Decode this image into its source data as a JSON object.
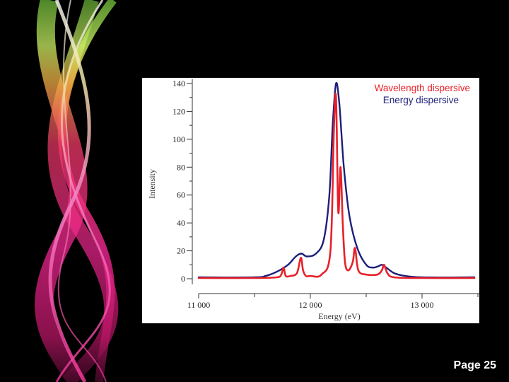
{
  "slide": {
    "page_label": "Page 25",
    "colors": {
      "background": "#000000",
      "ribbon_pink": "#ff2a8a",
      "ribbon_green": "#a6ff3c",
      "ribbon_yellow": "#ffe066"
    }
  },
  "chart_data": {
    "type": "line",
    "title": "",
    "xlabel": "Energy (eV)",
    "ylabel": "Intensity",
    "xlim": [
      11000,
      13500
    ],
    "ylim": [
      0,
      140
    ],
    "grid": false,
    "legend_position": "top-right",
    "x_ticks": [
      {
        "value": 11000,
        "label": "11 000"
      },
      {
        "value": 12000,
        "label": "12 000"
      },
      {
        "value": 13000,
        "label": "13 000"
      }
    ],
    "y_ticks": [
      {
        "value": 0,
        "label": "0"
      },
      {
        "value": 20,
        "label": "20"
      },
      {
        "value": 40,
        "label": "40"
      },
      {
        "value": 60,
        "label": "60"
      },
      {
        "value": 80,
        "label": "80"
      },
      {
        "value": 100,
        "label": "100"
      },
      {
        "value": 120,
        "label": "120"
      },
      {
        "value": 140,
        "label": "140"
      }
    ],
    "series": [
      {
        "name": "Wavelength dispersive",
        "color": "#e8202a",
        "x": [
          11000,
          11500,
          11700,
          11740,
          11760,
          11780,
          11820,
          11880,
          11915,
          11935,
          11960,
          12000,
          12100,
          12180,
          12210,
          12230,
          12250,
          12270,
          12290,
          12310,
          12340,
          12380,
          12400,
          12430,
          12500,
          12600,
          12640,
          12660,
          12690,
          12750,
          13000,
          13500
        ],
        "y": [
          0.5,
          0.5,
          1,
          3,
          8,
          2,
          2,
          4,
          15,
          6,
          2,
          2,
          3,
          20,
          105,
          130,
          48,
          80,
          40,
          12,
          6,
          12,
          22,
          6,
          3,
          3,
          6,
          10,
          4,
          1,
          0.5,
          0.5
        ]
      },
      {
        "name": "Energy dispersive",
        "color": "#1c1f7a",
        "x": [
          11000,
          11500,
          11600,
          11700,
          11800,
          11870,
          11920,
          11970,
          12050,
          12120,
          12170,
          12200,
          12230,
          12260,
          12300,
          12350,
          12420,
          12500,
          12560,
          12610,
          12640,
          12680,
          12750,
          12850,
          13000,
          13500
        ],
        "y": [
          1,
          1,
          2,
          5,
          10,
          16,
          18,
          16,
          18,
          28,
          60,
          110,
          140,
          125,
          80,
          45,
          22,
          10,
          8,
          9,
          10,
          8,
          4,
          2,
          1,
          1
        ]
      }
    ]
  }
}
